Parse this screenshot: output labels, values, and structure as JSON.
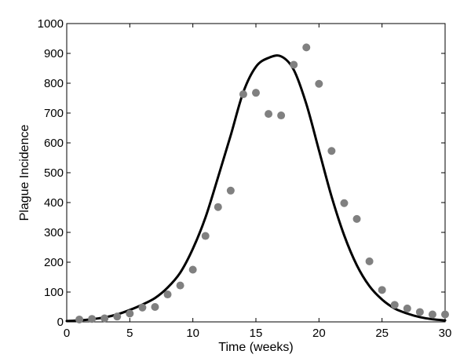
{
  "chart_data": {
    "type": "scatter",
    "title": "",
    "xlabel": "Time (weeks)",
    "ylabel": "Plague Incidence",
    "xlim": [
      0,
      30
    ],
    "ylim": [
      0,
      1000
    ],
    "xticks": [
      "0",
      "5",
      "10",
      "15",
      "20",
      "25",
      "30"
    ],
    "yticks": [
      "0",
      "100",
      "200",
      "300",
      "400",
      "500",
      "600",
      "700",
      "800",
      "900",
      "1000"
    ],
    "grid": false,
    "legend": "none",
    "series": [
      {
        "kind": "points",
        "color": "#808080",
        "x": [
          1,
          2,
          3,
          4,
          5,
          6,
          7,
          8,
          9,
          10,
          11,
          12,
          13,
          14,
          15,
          16,
          17,
          18,
          19,
          20,
          21,
          22,
          23,
          24,
          25,
          26,
          27,
          28,
          29,
          30
        ],
        "y": [
          8,
          10,
          12,
          18,
          28,
          48,
          50,
          92,
          122,
          175,
          288,
          385,
          440,
          763,
          768,
          697,
          692,
          862,
          920,
          798,
          573,
          398,
          345,
          203,
          107,
          57,
          45,
          33,
          25,
          25
        ]
      },
      {
        "kind": "line",
        "color": "#000000",
        "x": [
          0,
          1,
          2,
          3,
          4,
          5,
          6,
          7,
          8,
          9,
          10,
          11,
          12,
          13,
          14,
          15,
          16,
          17,
          18,
          19,
          20,
          21,
          22,
          23,
          24,
          25,
          26,
          27,
          28,
          29,
          30
        ],
        "y": [
          3,
          5,
          9,
          15,
          25,
          40,
          58,
          80,
          115,
          165,
          245,
          350,
          485,
          625,
          770,
          855,
          885,
          890,
          845,
          730,
          575,
          420,
          290,
          190,
          120,
          75,
          45,
          28,
          16,
          9,
          5
        ]
      }
    ]
  }
}
